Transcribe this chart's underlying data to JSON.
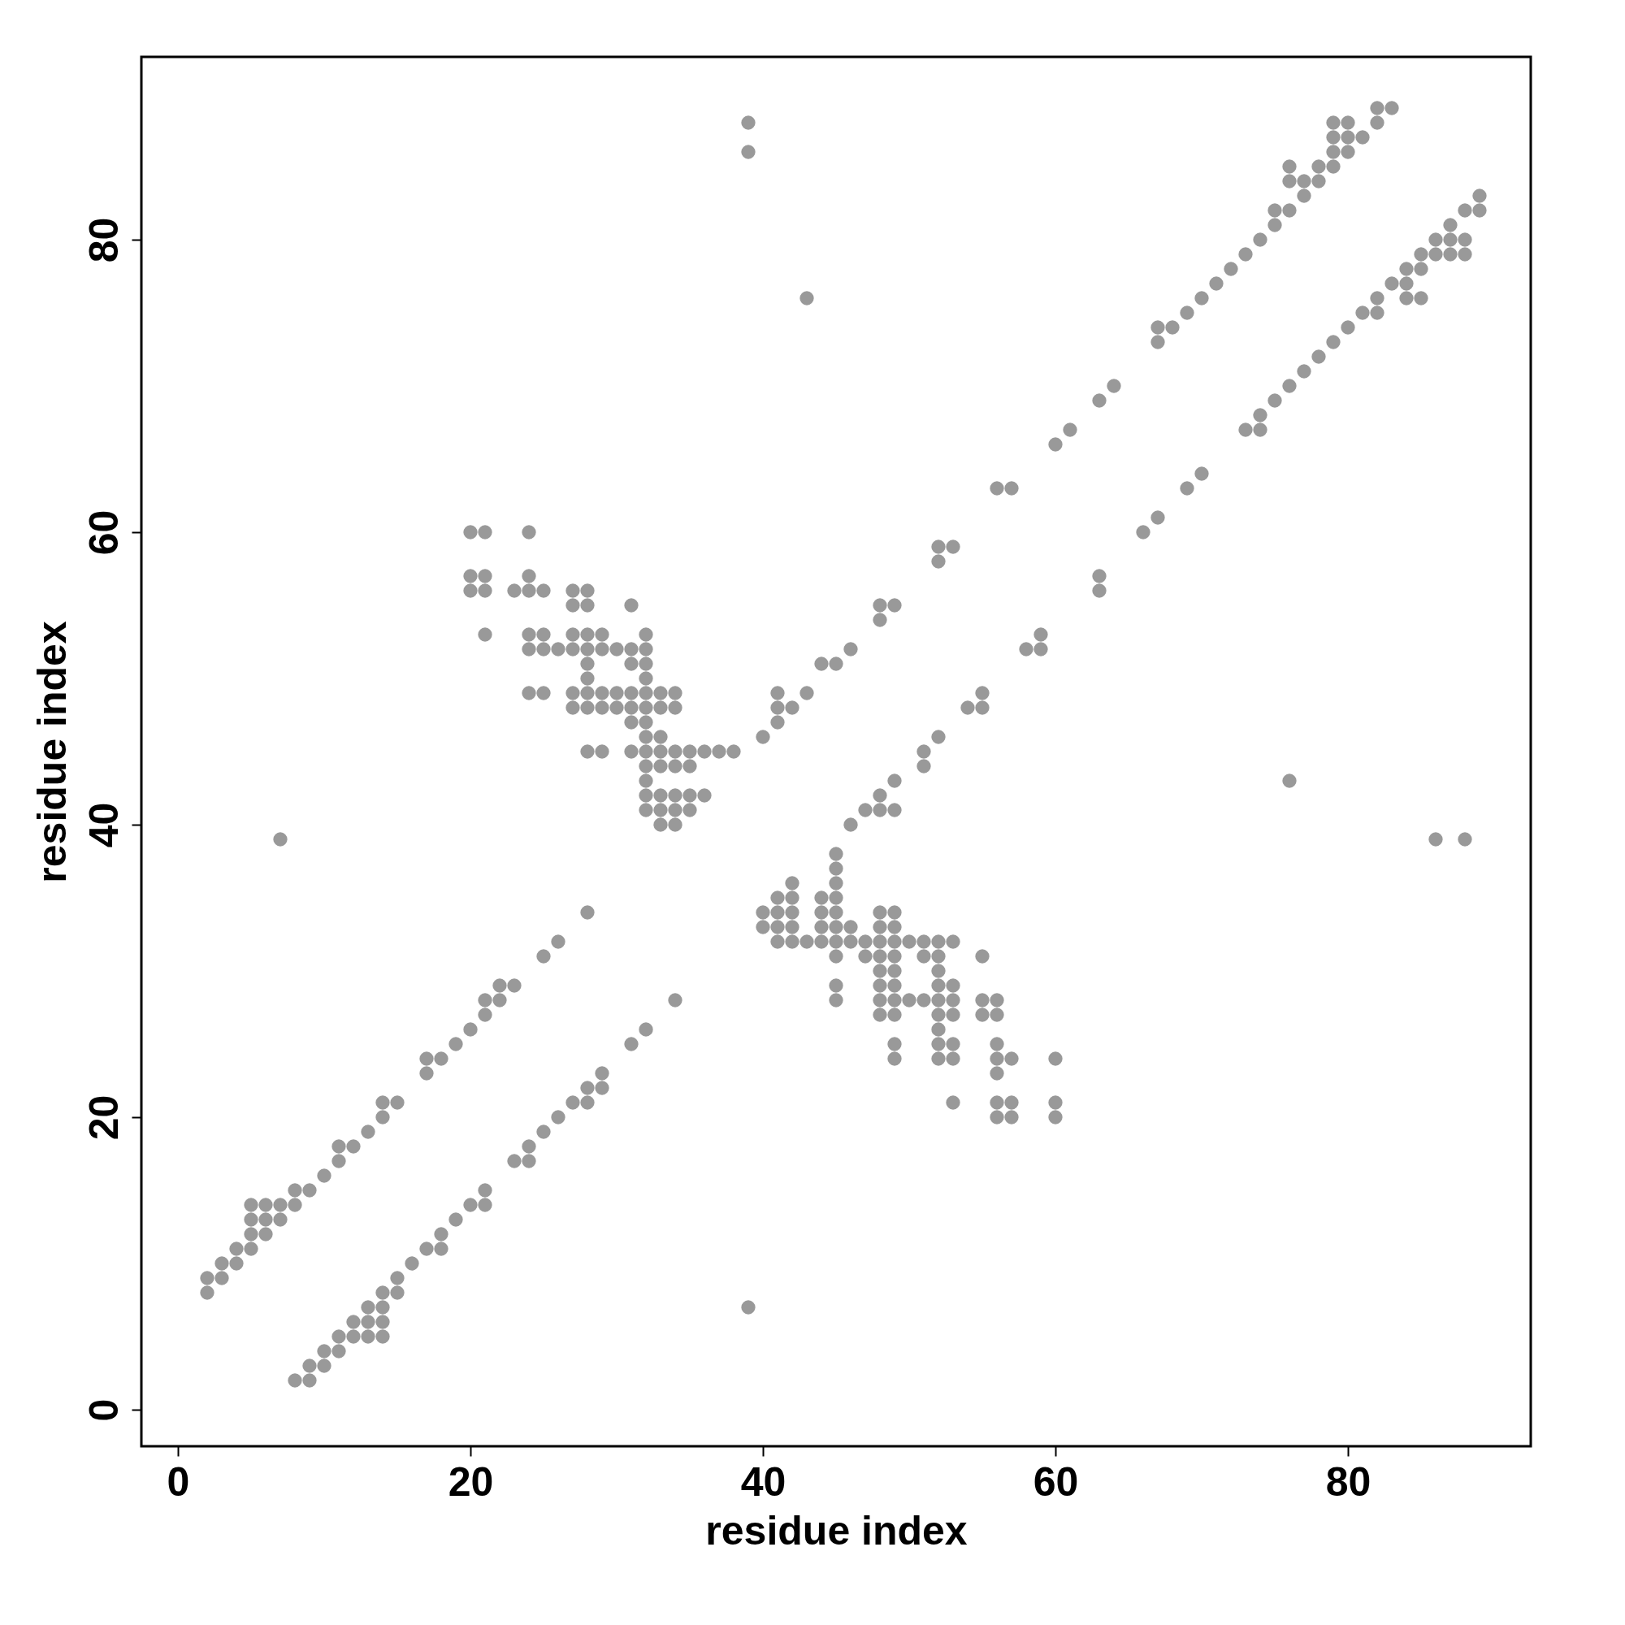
{
  "chart_data": {
    "type": "scatter",
    "xlabel": "residue index",
    "ylabel": "residue index",
    "xlim": [
      -2.5,
      92.5
    ],
    "ylim": [
      -2.5,
      92.5
    ],
    "xticks": [
      0,
      20,
      40,
      60,
      80
    ],
    "yticks": [
      0,
      20,
      40,
      60,
      80
    ],
    "marker": "circle",
    "series": [
      {
        "color": "#999999",
        "x": [
          2,
          2,
          3,
          3,
          4,
          4,
          5,
          5,
          5,
          5,
          6,
          6,
          6,
          7,
          7,
          8,
          8,
          9,
          10,
          11,
          11,
          12,
          13,
          14,
          14,
          15,
          17,
          17,
          18,
          19,
          20,
          21,
          21,
          22,
          22,
          23,
          25,
          26,
          28,
          7,
          20,
          21,
          24,
          20,
          21,
          24,
          20,
          21,
          23,
          24,
          25,
          27,
          28,
          27,
          28,
          31,
          21,
          24,
          25,
          27,
          28,
          29,
          32,
          24,
          25,
          26,
          27,
          28,
          29,
          30,
          31,
          32,
          28,
          31,
          32,
          28,
          32,
          24,
          25,
          27,
          28,
          29,
          30,
          31,
          32,
          33,
          34,
          27,
          28,
          29,
          30,
          31,
          32,
          33,
          34,
          31,
          32,
          32,
          33,
          28,
          29,
          31,
          32,
          33,
          34,
          35,
          36,
          37,
          38,
          32,
          33,
          34,
          35,
          32,
          32,
          33,
          34,
          35,
          36,
          32,
          33,
          34,
          35,
          33,
          34,
          40,
          41,
          41,
          41,
          42,
          43,
          44,
          45,
          46,
          48,
          48,
          49,
          52,
          52,
          53,
          56,
          57,
          60,
          61,
          63,
          64,
          67,
          67,
          68,
          69,
          70,
          71,
          72,
          73,
          74,
          75,
          75,
          76,
          76,
          76,
          77,
          77,
          78,
          78,
          79,
          79,
          79,
          79,
          80,
          80,
          80,
          81,
          82,
          82,
          83,
          39,
          39,
          43,
          8,
          9,
          9,
          10,
          10,
          11,
          11,
          12,
          13,
          14,
          12,
          13,
          14,
          13,
          14,
          14,
          15,
          15,
          16,
          17,
          18,
          18,
          19,
          20,
          21,
          21,
          23,
          24,
          24,
          25,
          26,
          27,
          28,
          28,
          29,
          29,
          31,
          32,
          34,
          39,
          60,
          60,
          60,
          57,
          57,
          57,
          56,
          56,
          56,
          56,
          56,
          56,
          56,
          55,
          55,
          55,
          53,
          53,
          53,
          53,
          53,
          53,
          53,
          52,
          52,
          52,
          52,
          52,
          52,
          52,
          52,
          52,
          51,
          51,
          51,
          50,
          50,
          49,
          49,
          49,
          49,
          49,
          49,
          49,
          49,
          49,
          49,
          48,
          48,
          48,
          48,
          48,
          48,
          48,
          48,
          47,
          47,
          46,
          46,
          45,
          45,
          45,
          45,
          45,
          45,
          45,
          45,
          45,
          45,
          44,
          44,
          44,
          44,
          43,
          42,
          42,
          42,
          42,
          42,
          41,
          41,
          41,
          41,
          40,
          40,
          46,
          47,
          48,
          49,
          48,
          49,
          51,
          51,
          52,
          54,
          55,
          55,
          58,
          59,
          59,
          63,
          63,
          66,
          67,
          69,
          70,
          73,
          74,
          74,
          75,
          76,
          77,
          78,
          79,
          80,
          81,
          82,
          82,
          84,
          85,
          83,
          84,
          84,
          85,
          85,
          86,
          87,
          88,
          86,
          87,
          88,
          87,
          88,
          89,
          89,
          86,
          88,
          76
        ],
        "values": [
          8,
          9,
          9,
          10,
          10,
          11,
          11,
          12,
          13,
          14,
          12,
          13,
          14,
          13,
          14,
          14,
          15,
          15,
          16,
          17,
          18,
          18,
          19,
          20,
          21,
          21,
          23,
          24,
          24,
          25,
          26,
          27,
          28,
          28,
          29,
          29,
          31,
          32,
          34,
          39,
          60,
          60,
          60,
          57,
          57,
          57,
          56,
          56,
          56,
          56,
          56,
          56,
          56,
          55,
          55,
          55,
          53,
          53,
          53,
          53,
          53,
          53,
          53,
          52,
          52,
          52,
          52,
          52,
          52,
          52,
          52,
          52,
          51,
          51,
          51,
          50,
          50,
          49,
          49,
          49,
          49,
          49,
          49,
          49,
          49,
          49,
          49,
          48,
          48,
          48,
          48,
          48,
          48,
          48,
          48,
          47,
          47,
          46,
          46,
          45,
          45,
          45,
          45,
          45,
          45,
          45,
          45,
          45,
          45,
          44,
          44,
          44,
          44,
          43,
          42,
          42,
          42,
          42,
          42,
          41,
          41,
          41,
          41,
          40,
          40,
          46,
          47,
          48,
          49,
          48,
          49,
          51,
          51,
          52,
          54,
          55,
          55,
          58,
          59,
          59,
          63,
          63,
          66,
          67,
          69,
          70,
          73,
          74,
          74,
          75,
          76,
          77,
          78,
          79,
          80,
          81,
          82,
          82,
          84,
          85,
          83,
          84,
          84,
          85,
          85,
          86,
          87,
          88,
          86,
          87,
          88,
          87,
          88,
          89,
          89,
          86,
          88,
          76,
          2,
          2,
          3,
          3,
          4,
          4,
          5,
          5,
          5,
          5,
          6,
          6,
          6,
          7,
          7,
          8,
          8,
          9,
          10,
          11,
          11,
          12,
          13,
          14,
          14,
          15,
          17,
          17,
          18,
          19,
          20,
          21,
          21,
          22,
          22,
          23,
          25,
          26,
          28,
          7,
          20,
          21,
          24,
          20,
          21,
          24,
          20,
          21,
          23,
          24,
          25,
          27,
          28,
          27,
          28,
          31,
          21,
          24,
          25,
          27,
          28,
          29,
          32,
          24,
          25,
          26,
          27,
          28,
          29,
          30,
          31,
          32,
          28,
          31,
          32,
          28,
          32,
          24,
          25,
          27,
          28,
          29,
          30,
          31,
          32,
          33,
          34,
          27,
          28,
          29,
          30,
          31,
          32,
          33,
          34,
          31,
          32,
          32,
          33,
          28,
          29,
          31,
          32,
          33,
          34,
          35,
          36,
          37,
          38,
          32,
          33,
          34,
          35,
          32,
          32,
          33,
          34,
          35,
          36,
          32,
          33,
          34,
          35,
          33,
          34,
          40,
          41,
          41,
          41,
          42,
          43,
          44,
          45,
          46,
          48,
          48,
          49,
          52,
          52,
          53,
          56,
          57,
          60,
          61,
          63,
          64,
          67,
          67,
          68,
          69,
          70,
          71,
          72,
          73,
          74,
          75,
          75,
          76,
          76,
          76,
          77,
          77,
          78,
          78,
          79,
          79,
          79,
          79,
          80,
          80,
          80,
          81,
          82,
          82,
          83,
          39,
          39,
          43
        ]
      }
    ]
  }
}
